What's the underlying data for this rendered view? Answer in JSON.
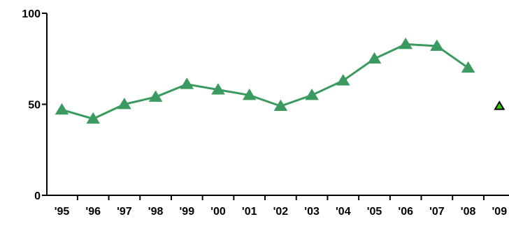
{
  "chart_data": {
    "type": "line",
    "title": "",
    "xlabel": "",
    "ylabel": "",
    "categories": [
      "'95",
      "'96",
      "'97",
      "'98",
      "'99",
      "'00",
      "'01",
      "'02",
      "'03",
      "'04",
      "'05",
      "'06",
      "'07",
      "'08",
      "'09"
    ],
    "ylim": [
      0,
      100
    ],
    "yticks": [
      0,
      50,
      100
    ],
    "series": [
      {
        "values": [
          47,
          42,
          50,
          54,
          61,
          58,
          55,
          49,
          55,
          63,
          75,
          83,
          82,
          70,
          null
        ],
        "color": "#3a9a5f",
        "marker": "triangle"
      },
      {
        "values": [
          null,
          null,
          null,
          null,
          null,
          null,
          null,
          null,
          null,
          null,
          null,
          null,
          null,
          null,
          49
        ],
        "color": "#33cc00",
        "edge_color": "#000000",
        "marker": "triangle"
      }
    ],
    "grid": false,
    "legend": "none"
  }
}
